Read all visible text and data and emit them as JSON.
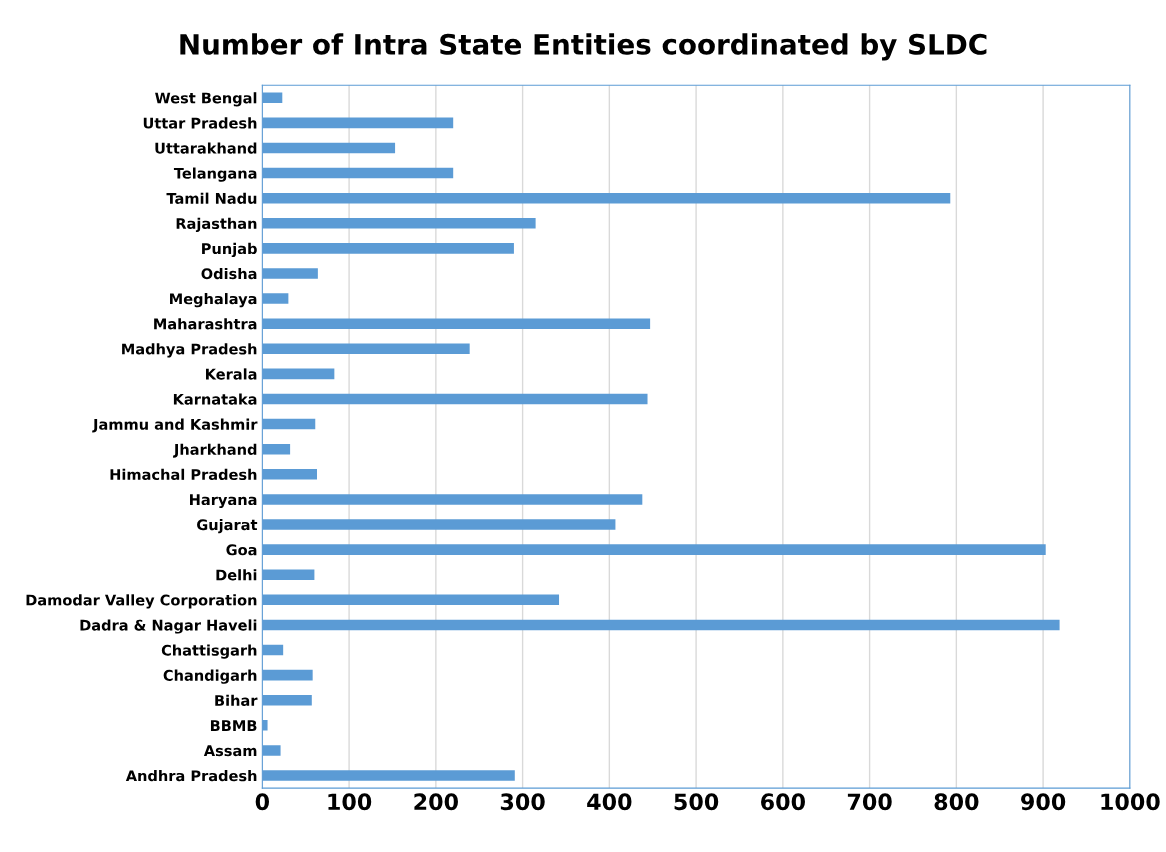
{
  "chart_data": {
    "type": "bar",
    "orientation": "horizontal",
    "title": "Number of Intra State Entities coordinated by SLDC",
    "categories": [
      "West Bengal",
      "Uttar Pradesh",
      "Uttarakhand",
      "Telangana",
      "Tamil Nadu",
      "Rajasthan",
      "Punjab",
      "Odisha",
      "Meghalaya",
      "Maharashtra",
      "Madhya Pradesh",
      "Kerala",
      "Karnataka",
      "Jammu and Kashmir",
      "Jharkhand",
      "Himachal Pradesh",
      "Haryana",
      "Gujarat",
      "Goa",
      "Delhi",
      "Damodar Valley Corporation",
      "Dadra & Nagar Haveli",
      "Chattisgarh",
      "Chandigarh",
      "Bihar",
      "BBMB",
      "Assam",
      "Andhra Pradesh"
    ],
    "values": [
      23,
      220,
      153,
      220,
      793,
      315,
      290,
      64,
      30,
      447,
      239,
      83,
      444,
      61,
      32,
      63,
      438,
      407,
      903,
      60,
      342,
      919,
      24,
      58,
      57,
      6,
      21,
      291
    ],
    "color": "#5b9bd5",
    "xlim": [
      0,
      1000
    ],
    "xticks": [
      0,
      100,
      200,
      300,
      400,
      500,
      600,
      700,
      800,
      900,
      1000
    ],
    "grid": "x"
  }
}
